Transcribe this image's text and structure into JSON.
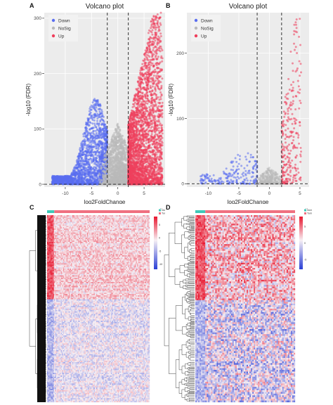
{
  "panel_letters": [
    "A",
    "B",
    "C",
    "D"
  ],
  "colors": {
    "down": "#5a6ef0",
    "nosig": "#b9b9b9",
    "up": "#ef3f5c",
    "panel_bg": "#ececec",
    "heat_low": "#2a3fd6",
    "heat_mid": "#f7f0f4",
    "heat_high": "#e8172f",
    "sample_normal": "#3fc8b8",
    "sample_tumor": "#f07080"
  },
  "chart_data": [
    {
      "panel": "A",
      "type": "scatter",
      "title": "Volcano plot",
      "xlabel": "log2FoldChange",
      "ylabel": "-log10 (FDR)",
      "xlim": [
        -14,
        9
      ],
      "ylim": [
        -5,
        310
      ],
      "xticks": [
        -10,
        -5,
        0,
        5
      ],
      "yticks": [
        0,
        100,
        200,
        300
      ],
      "thresholds": {
        "logfc": [
          -2,
          2
        ],
        "fdr_line": 0
      },
      "grid": true,
      "legend": {
        "position": "top-left",
        "entries": [
          "Down",
          "NoSig",
          "Up"
        ]
      },
      "series": [
        {
          "name": "Down",
          "color_key": "down",
          "x_range": [
            -12.5,
            -2
          ],
          "y_max": 155,
          "approx_count": 2200
        },
        {
          "name": "NoSig",
          "color_key": "nosig",
          "x_range": [
            -4,
            4
          ],
          "y_max": 110,
          "approx_count": 2000
        },
        {
          "name": "Up",
          "color_key": "up",
          "x_range": [
            2,
            8.5
          ],
          "y_max": 310,
          "approx_count": 3000
        }
      ]
    },
    {
      "panel": "B",
      "type": "scatter",
      "title": "Volcano plot",
      "xlabel": "log2FoldChange",
      "ylabel": "-log10 (FDR)",
      "xlim": [
        -13.5,
        6.5
      ],
      "ylim": [
        -5,
        262
      ],
      "xticks": [
        -10,
        -5,
        0,
        5
      ],
      "yticks": [
        0,
        100,
        200
      ],
      "thresholds": {
        "logfc": [
          -2,
          2
        ],
        "fdr_line": 0
      },
      "grid": true,
      "legend": {
        "position": "top-left",
        "entries": [
          "Down",
          "NoSig",
          "Up"
        ]
      },
      "series": [
        {
          "name": "Down",
          "color_key": "down",
          "x_range": [
            -11.5,
            -2
          ],
          "y_max": 55,
          "approx_count": 220
        },
        {
          "name": "NoSig",
          "color_key": "nosig",
          "x_range": [
            -3,
            3
          ],
          "y_max": 25,
          "approx_count": 350
        },
        {
          "name": "Up",
          "color_key": "up",
          "x_range": [
            2,
            5.2
          ],
          "y_max": 262,
          "approx_count": 260
        }
      ]
    },
    {
      "panel": "C",
      "type": "heatmap",
      "title": "",
      "annotation": {
        "title": "Type",
        "categories": [
          "Normal",
          "Tumor"
        ],
        "normal_fraction": 0.07
      },
      "colorbar": {
        "ticks": [
          "5",
          "0",
          "-5",
          "-10"
        ],
        "range": [
          -12,
          8
        ]
      }
    },
    {
      "panel": "D",
      "type": "heatmap",
      "title": "",
      "annotation": {
        "title": "Type",
        "categories": [
          "Normal",
          "Tumor"
        ],
        "normal_fraction": 0.1
      },
      "colorbar": {
        "ticks": [
          "5",
          "0",
          "-5"
        ],
        "range": [
          -8,
          8
        ]
      }
    }
  ]
}
